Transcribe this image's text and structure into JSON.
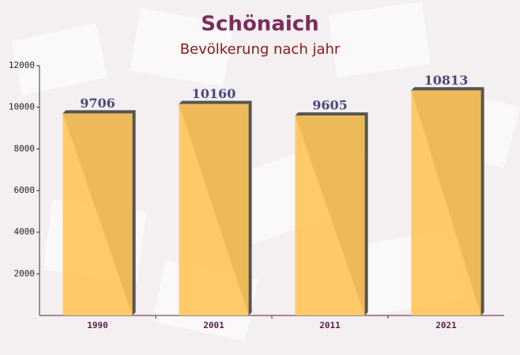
{
  "chart_data": {
    "type": "bar",
    "title": "Schönaich",
    "subtitle": "Bevölkerung nach jahr",
    "categories": [
      "1990",
      "2001",
      "2011",
      "2021"
    ],
    "values": [
      9706,
      10160,
      9605,
      10813
    ],
    "color": "#ffc55a",
    "ylim": [
      0,
      12000
    ],
    "yticks": [
      2000,
      4000,
      6000,
      8000,
      10000,
      12000
    ],
    "grid": false
  }
}
